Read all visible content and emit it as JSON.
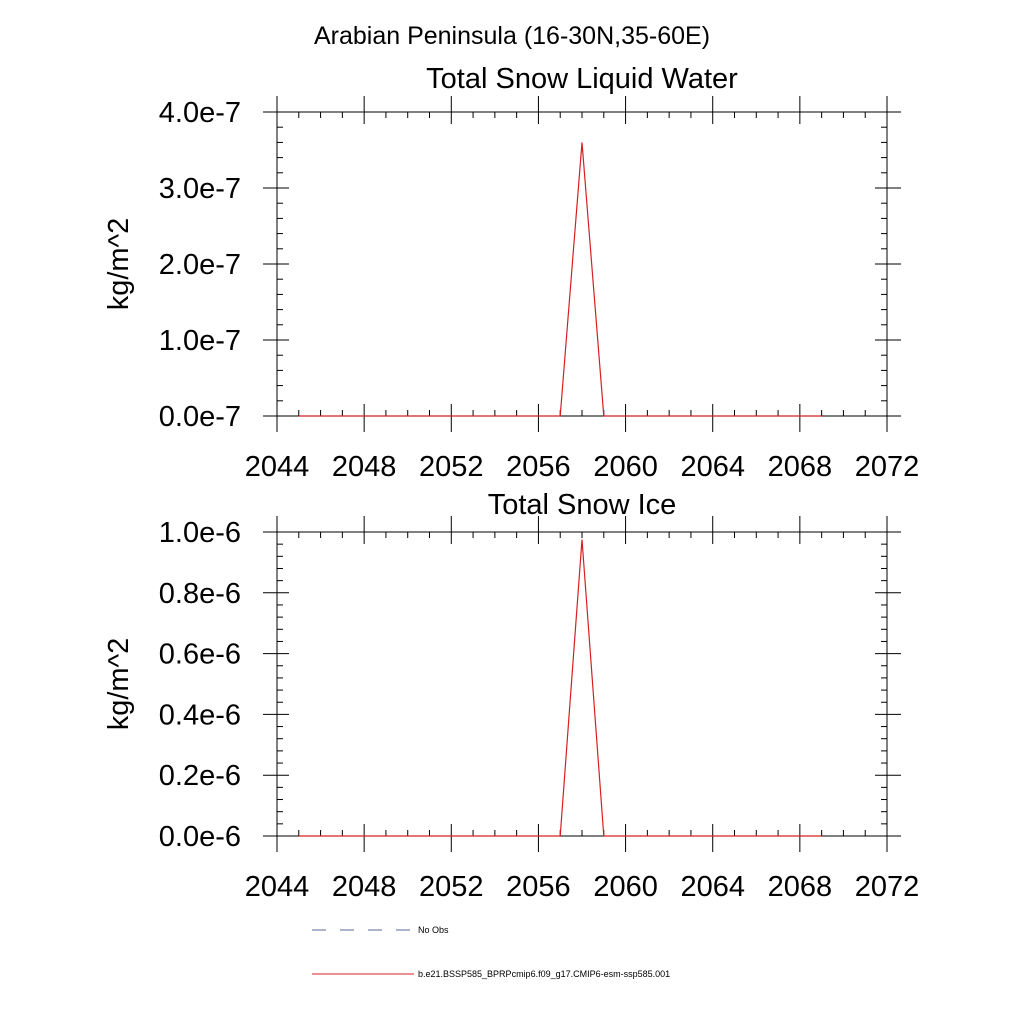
{
  "figure": {
    "title": "Arabian Peninsula (16-30N,35-60E)"
  },
  "legend": {
    "entries": [
      {
        "label": "No Obs",
        "color": "#5a6a9a",
        "style": "dashed"
      },
      {
        "label": "b.e21.BSSP585_BPRPcmip6.f09_g17.CMIP6-esm-ssp585.001",
        "color": "#d62020",
        "style": "solid"
      }
    ]
  },
  "chart_data": [
    {
      "type": "line",
      "title": "Total Snow Liquid Water",
      "xlabel": "",
      "ylabel": "kg/m^2",
      "xlim": [
        2044,
        2072
      ],
      "ylim": [
        0,
        4e-07
      ],
      "xticks": [
        2044,
        2048,
        2052,
        2056,
        2060,
        2064,
        2068,
        2072
      ],
      "xtick_labels": [
        "2044",
        "2048",
        "2052",
        "2056",
        "2060",
        "2064",
        "2068",
        "2072"
      ],
      "yticks": [
        0,
        1e-07,
        2e-07,
        3e-07,
        4e-07
      ],
      "ytick_labels": [
        "0.0e-7",
        "1.0e-7",
        "2.0e-7",
        "3.0e-7",
        "4.0e-7"
      ],
      "grid": false,
      "series": [
        {
          "name": "b.e21.BSSP585_BPRPcmip6.f09_g17.CMIP6-esm-ssp585.001",
          "color": "#d62020",
          "x": [
            2045,
            2046,
            2047,
            2048,
            2049,
            2050,
            2051,
            2052,
            2053,
            2054,
            2055,
            2056,
            2057,
            2058,
            2059,
            2060,
            2061,
            2062,
            2063,
            2064,
            2065,
            2066,
            2067,
            2068,
            2069
          ],
          "y": [
            0,
            0,
            0,
            0,
            0,
            0,
            0,
            0,
            0,
            0,
            0,
            0,
            0,
            3.6e-07,
            0,
            0,
            0,
            0,
            0,
            0,
            0,
            0,
            0,
            0,
            0
          ]
        }
      ]
    },
    {
      "type": "line",
      "title": "Total Snow Ice",
      "xlabel": "",
      "ylabel": "kg/m^2",
      "xlim": [
        2044,
        2072
      ],
      "ylim": [
        0,
        1e-06
      ],
      "xticks": [
        2044,
        2048,
        2052,
        2056,
        2060,
        2064,
        2068,
        2072
      ],
      "xtick_labels": [
        "2044",
        "2048",
        "2052",
        "2056",
        "2060",
        "2064",
        "2068",
        "2072"
      ],
      "yticks": [
        0,
        2e-07,
        4e-07,
        6e-07,
        8e-07,
        1e-06
      ],
      "ytick_labels": [
        "0.0e-6",
        "0.2e-6",
        "0.4e-6",
        "0.6e-6",
        "0.8e-6",
        "1.0e-6"
      ],
      "grid": false,
      "series": [
        {
          "name": "b.e21.BSSP585_BPRPcmip6.f09_g17.CMIP6-esm-ssp585.001",
          "color": "#d62020",
          "x": [
            2045,
            2046,
            2047,
            2048,
            2049,
            2050,
            2051,
            2052,
            2053,
            2054,
            2055,
            2056,
            2057,
            2058,
            2059,
            2060,
            2061,
            2062,
            2063,
            2064,
            2065,
            2066,
            2067,
            2068,
            2069
          ],
          "y": [
            0,
            0,
            0,
            0,
            0,
            0,
            0,
            0,
            0,
            0,
            0,
            0,
            0,
            9.75e-07,
            0,
            0,
            0,
            0,
            0,
            0,
            0,
            0,
            0,
            0,
            0
          ]
        }
      ]
    }
  ]
}
